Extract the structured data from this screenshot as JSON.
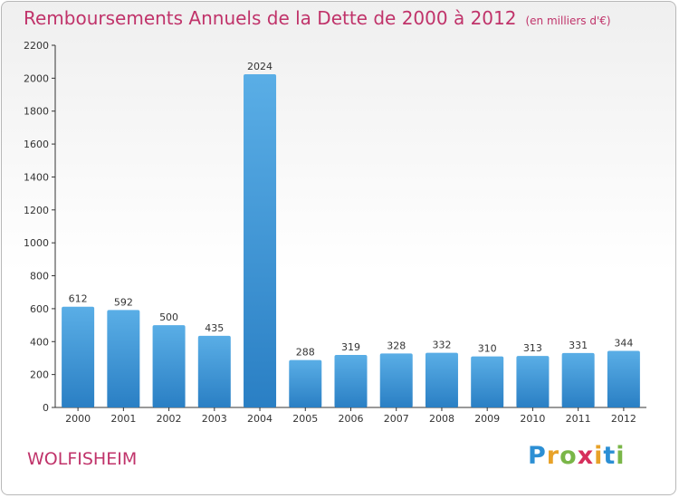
{
  "header": {
    "title": "Remboursements Annuels de la Dette de 2000 à 2012",
    "subtitle": "(en milliers d'€)"
  },
  "footer": {
    "commune": "WOLFISHEIM",
    "logo": "Proxiti"
  },
  "colors": {
    "title": "#c0336a",
    "bar_top": "#5aaee6",
    "bar_bottom": "#2a7fc4"
  },
  "chart_data": {
    "type": "bar",
    "categories": [
      "2000",
      "2001",
      "2002",
      "2003",
      "2004",
      "2005",
      "2006",
      "2007",
      "2008",
      "2009",
      "2010",
      "2011",
      "2012"
    ],
    "values": [
      612,
      592,
      500,
      435,
      2024,
      288,
      319,
      328,
      332,
      310,
      313,
      331,
      344
    ],
    "title": "Remboursements Annuels de la Dette de 2000 à 2012",
    "ylim": [
      0,
      2200
    ],
    "yticks": [
      0,
      200,
      400,
      600,
      800,
      1000,
      1200,
      1400,
      1600,
      1800,
      2000,
      2200
    ],
    "grid": false,
    "legend": "none"
  }
}
